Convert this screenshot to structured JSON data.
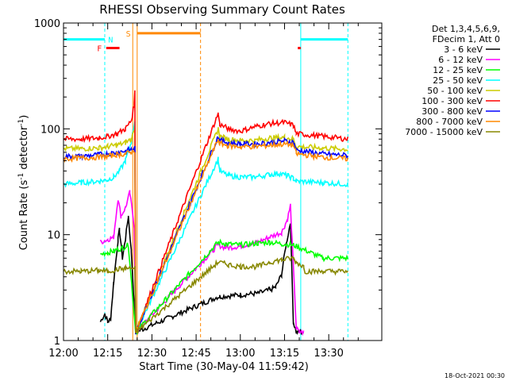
{
  "chart_data": {
    "type": "line",
    "title": "RHESSI Observing Summary Count Rates",
    "xlabel": "Start Time (30-May-04 11:59:42)",
    "ylabel_parts": [
      "Count Rate (s",
      "-1",
      " detector",
      "-1",
      ")"
    ],
    "yscale": "log",
    "ylim": [
      1,
      1000
    ],
    "xlim_min": [
      0,
      108
    ],
    "x_ticks": [
      {
        "m": 0,
        "label": "12:00"
      },
      {
        "m": 15,
        "label": "12:15"
      },
      {
        "m": 30,
        "label": "12:30"
      },
      {
        "m": 45,
        "label": "12:45"
      },
      {
        "m": 60,
        "label": "13:00"
      },
      {
        "m": 75,
        "label": "13:15"
      },
      {
        "m": 90,
        "label": "13:30"
      }
    ],
    "y_ticks": [
      {
        "v": 1,
        "label": "1"
      },
      {
        "v": 10,
        "label": "10"
      },
      {
        "v": 100,
        "label": "100"
      },
      {
        "v": 1000,
        "label": "1000"
      }
    ],
    "legend_header": [
      "Det 1,3,4,5,6,9,",
      "FDecim 1, Att 0"
    ],
    "legend_position": "right",
    "footer_date": "18-Oct-2021 00:30",
    "data_gap_min": [
      26.5,
      52.5
    ],
    "series": [
      {
        "name": "3 - 6 keV",
        "color": "#000000",
        "x": [
          12.5,
          14,
          15,
          16,
          17,
          18.5,
          19,
          20,
          21,
          22,
          23,
          24.5,
          52.5,
          53,
          60,
          66,
          70,
          72,
          74,
          75.5,
          77,
          78,
          79,
          80,
          81.5
        ],
        "y": [
          1.5,
          1.8,
          1.5,
          1.6,
          3.5,
          9,
          11,
          6,
          9,
          15,
          7,
          1.2,
          2.6,
          2.6,
          2.7,
          2.8,
          3.0,
          3.2,
          4.2,
          8,
          13,
          1.5,
          1.2,
          1.2,
          1.2
        ]
      },
      {
        "name": "6 - 12 keV",
        "color": "#ff00ff",
        "x": [
          12.5,
          15,
          17,
          18.5,
          19.5,
          21,
          22.5,
          24,
          24.5,
          52.5,
          55,
          60,
          66,
          70,
          74,
          76,
          77,
          79,
          80,
          81.5
        ],
        "y": [
          8.5,
          9,
          9.5,
          22,
          15,
          18,
          25,
          12,
          1.2,
          8,
          7.5,
          7.8,
          8.5,
          9.5,
          10.5,
          14,
          19,
          1.3,
          1.2,
          1.2
        ]
      },
      {
        "name": "12 - 25 keV",
        "color": "#00ff00",
        "x": [
          12.5,
          15,
          17,
          18,
          20,
          22,
          24.5,
          52.5,
          55,
          60,
          66,
          70,
          74,
          78,
          88,
          96.5
        ],
        "y": [
          6.5,
          6.8,
          7.0,
          7.2,
          7.5,
          8.0,
          1.2,
          8.5,
          8.2,
          8.0,
          8.3,
          8.5,
          8.2,
          8.0,
          6.0,
          6.0
        ]
      },
      {
        "name": "25 - 50 keV",
        "color": "#00ffff",
        "x": [
          0,
          6,
          12,
          15,
          17,
          19,
          21,
          23,
          24.2,
          24.5,
          52.5,
          53,
          56,
          60,
          65,
          70,
          73,
          76,
          78,
          79,
          88,
          96.5
        ],
        "y": [
          30,
          31,
          32,
          33,
          35,
          40,
          50,
          75,
          120,
          1.2,
          52,
          40,
          36,
          35,
          35,
          37,
          38,
          36,
          34,
          32,
          31,
          30
        ]
      },
      {
        "name": "50 - 100 keV",
        "color": "#cccc00",
        "x": [
          0,
          6,
          12,
          15,
          18,
          21,
          23,
          24.2,
          24.5,
          52.5,
          53,
          56,
          60,
          65,
          70,
          75,
          78,
          79,
          88,
          96.5
        ],
        "y": [
          65,
          65,
          66,
          68,
          70,
          74,
          80,
          100,
          1.2,
          100,
          85,
          80,
          78,
          78,
          82,
          83,
          80,
          68,
          66,
          64
        ]
      },
      {
        "name": "100 - 300 keV",
        "color": "#ff0000",
        "x": [
          0,
          6,
          12,
          15,
          18,
          21,
          23,
          24,
          24.2,
          24.5,
          52.5,
          53,
          56,
          60,
          65,
          70,
          75,
          78,
          79,
          88,
          96.5
        ],
        "y": [
          80,
          80,
          82,
          85,
          90,
          100,
          120,
          170,
          230,
          1.2,
          140,
          110,
          100,
          95,
          105,
          112,
          115,
          108,
          90,
          85,
          80
        ]
      },
      {
        "name": "300 - 800 keV",
        "color": "#0000ff",
        "x": [
          0,
          6,
          12,
          15,
          18,
          21,
          23,
          24.2,
          24.5,
          52.5,
          53,
          56,
          60,
          65,
          70,
          75,
          78,
          79,
          88,
          96.5
        ],
        "y": [
          55,
          55,
          57,
          58,
          60,
          62,
          64,
          66,
          1.2,
          85,
          78,
          74,
          72,
          72,
          74,
          77,
          75,
          63,
          58,
          56
        ]
      },
      {
        "name": "800 - 7000 keV",
        "color": "#ff8800",
        "x": [
          0,
          6,
          12,
          15,
          18,
          21,
          23,
          24.2,
          24.5,
          52.5,
          53,
          56,
          60,
          65,
          70,
          75,
          78,
          79,
          88,
          96.5
        ],
        "y": [
          52,
          53,
          54,
          55,
          57,
          58,
          60,
          62,
          1.2,
          80,
          73,
          69,
          68,
          68,
          70,
          72,
          70,
          58,
          54,
          52
        ]
      },
      {
        "name": "7000 - 15000 keV",
        "color": "#888800",
        "x": [
          0,
          6,
          12,
          15,
          18,
          21,
          24.2,
          24.5,
          52.5,
          56,
          60,
          66,
          70,
          74,
          78,
          79,
          81.5,
          82,
          88,
          96.5
        ],
        "y": [
          4.5,
          4.5,
          4.6,
          4.5,
          4.7,
          4.8,
          4.8,
          1.2,
          5.5,
          5.2,
          5.0,
          5.0,
          5.5,
          5.8,
          6.0,
          5.5,
          5.0,
          4.5,
          4.5,
          4.5
        ]
      }
    ],
    "flags": [
      {
        "code": "N",
        "color": "#00ffff",
        "bar_m": [
          [
            0,
            14
          ],
          [
            80.5,
            96.5
          ]
        ],
        "label_m": 16,
        "y_value": 700
      },
      {
        "code": "F",
        "color": "#ff0000",
        "bar_m": [
          [
            14.5,
            19
          ],
          [
            79.5,
            80.5
          ]
        ],
        "label_m": 12.2,
        "y_value": 580
      },
      {
        "code": "S",
        "color": "#ff8800",
        "bar_m": [
          [
            25,
            46.5
          ]
        ],
        "label_m": 22,
        "y_value": 800
      }
    ],
    "markers": [
      {
        "m": 0,
        "color": "#00ffff",
        "style": "solid"
      },
      {
        "m": 14,
        "color": "#00ffff",
        "style": "dashed"
      },
      {
        "m": 80.5,
        "color": "#00ffff",
        "style": "solid"
      },
      {
        "m": 96.5,
        "color": "#00ffff",
        "style": "dashed"
      },
      {
        "m": 23.5,
        "color": "#ff8800",
        "style": "solid"
      },
      {
        "m": 25,
        "color": "#ff8800",
        "style": "solid"
      },
      {
        "m": 46.5,
        "color": "#ff8800",
        "style": "dashed"
      }
    ]
  }
}
